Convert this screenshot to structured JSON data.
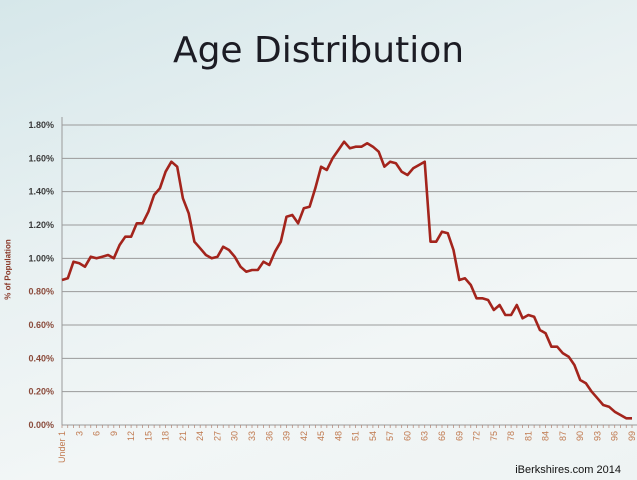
{
  "chart_data": {
    "type": "line",
    "title": "Age Distribution",
    "xlabel": "",
    "ylabel": "% of Population",
    "ylim": [
      0,
      1.8
    ],
    "yticks": [
      "0.00%",
      "0.20%",
      "0.40%",
      "0.60%",
      "0.80%",
      "1.00%",
      "1.20%",
      "1.40%",
      "1.60%",
      "1.80%"
    ],
    "xtick_labels": [
      "Under 1",
      "3",
      "6",
      "9",
      "12",
      "15",
      "18",
      "21",
      "24",
      "27",
      "30",
      "33",
      "36",
      "39",
      "42",
      "45",
      "48",
      "51",
      "54",
      "57",
      "60",
      "63",
      "66",
      "69",
      "72",
      "75",
      "78",
      "81",
      "84",
      "87",
      "90",
      "93",
      "96",
      "99"
    ],
    "x": "age in years, 0 (Under 1) to 99",
    "values": [
      0.87,
      0.88,
      0.98,
      0.97,
      0.95,
      1.01,
      1.0,
      1.01,
      1.02,
      1.0,
      1.08,
      1.13,
      1.13,
      1.21,
      1.21,
      1.28,
      1.38,
      1.42,
      1.52,
      1.58,
      1.55,
      1.36,
      1.27,
      1.1,
      1.06,
      1.02,
      1.0,
      1.01,
      1.07,
      1.05,
      1.01,
      0.95,
      0.92,
      0.93,
      0.93,
      0.98,
      0.96,
      1.04,
      1.1,
      1.25,
      1.26,
      1.21,
      1.3,
      1.31,
      1.42,
      1.55,
      1.53,
      1.6,
      1.65,
      1.7,
      1.66,
      1.67,
      1.67,
      1.69,
      1.67,
      1.64,
      1.55,
      1.58,
      1.57,
      1.52,
      1.5,
      1.54,
      1.56,
      1.58,
      1.1,
      1.1,
      1.16,
      1.15,
      1.05,
      0.87,
      0.88,
      0.84,
      0.76,
      0.76,
      0.75,
      0.69,
      0.72,
      0.66,
      0.66,
      0.72,
      0.64,
      0.66,
      0.65,
      0.57,
      0.55,
      0.47,
      0.47,
      0.43,
      0.41,
      0.36,
      0.27,
      0.25,
      0.2,
      0.16,
      0.12,
      0.11,
      0.08,
      0.06,
      0.04,
      0.04
    ],
    "grid": true,
    "line_color": "#a3241c",
    "legend": "none"
  },
  "watermark": "iBerkshires.com 2014"
}
